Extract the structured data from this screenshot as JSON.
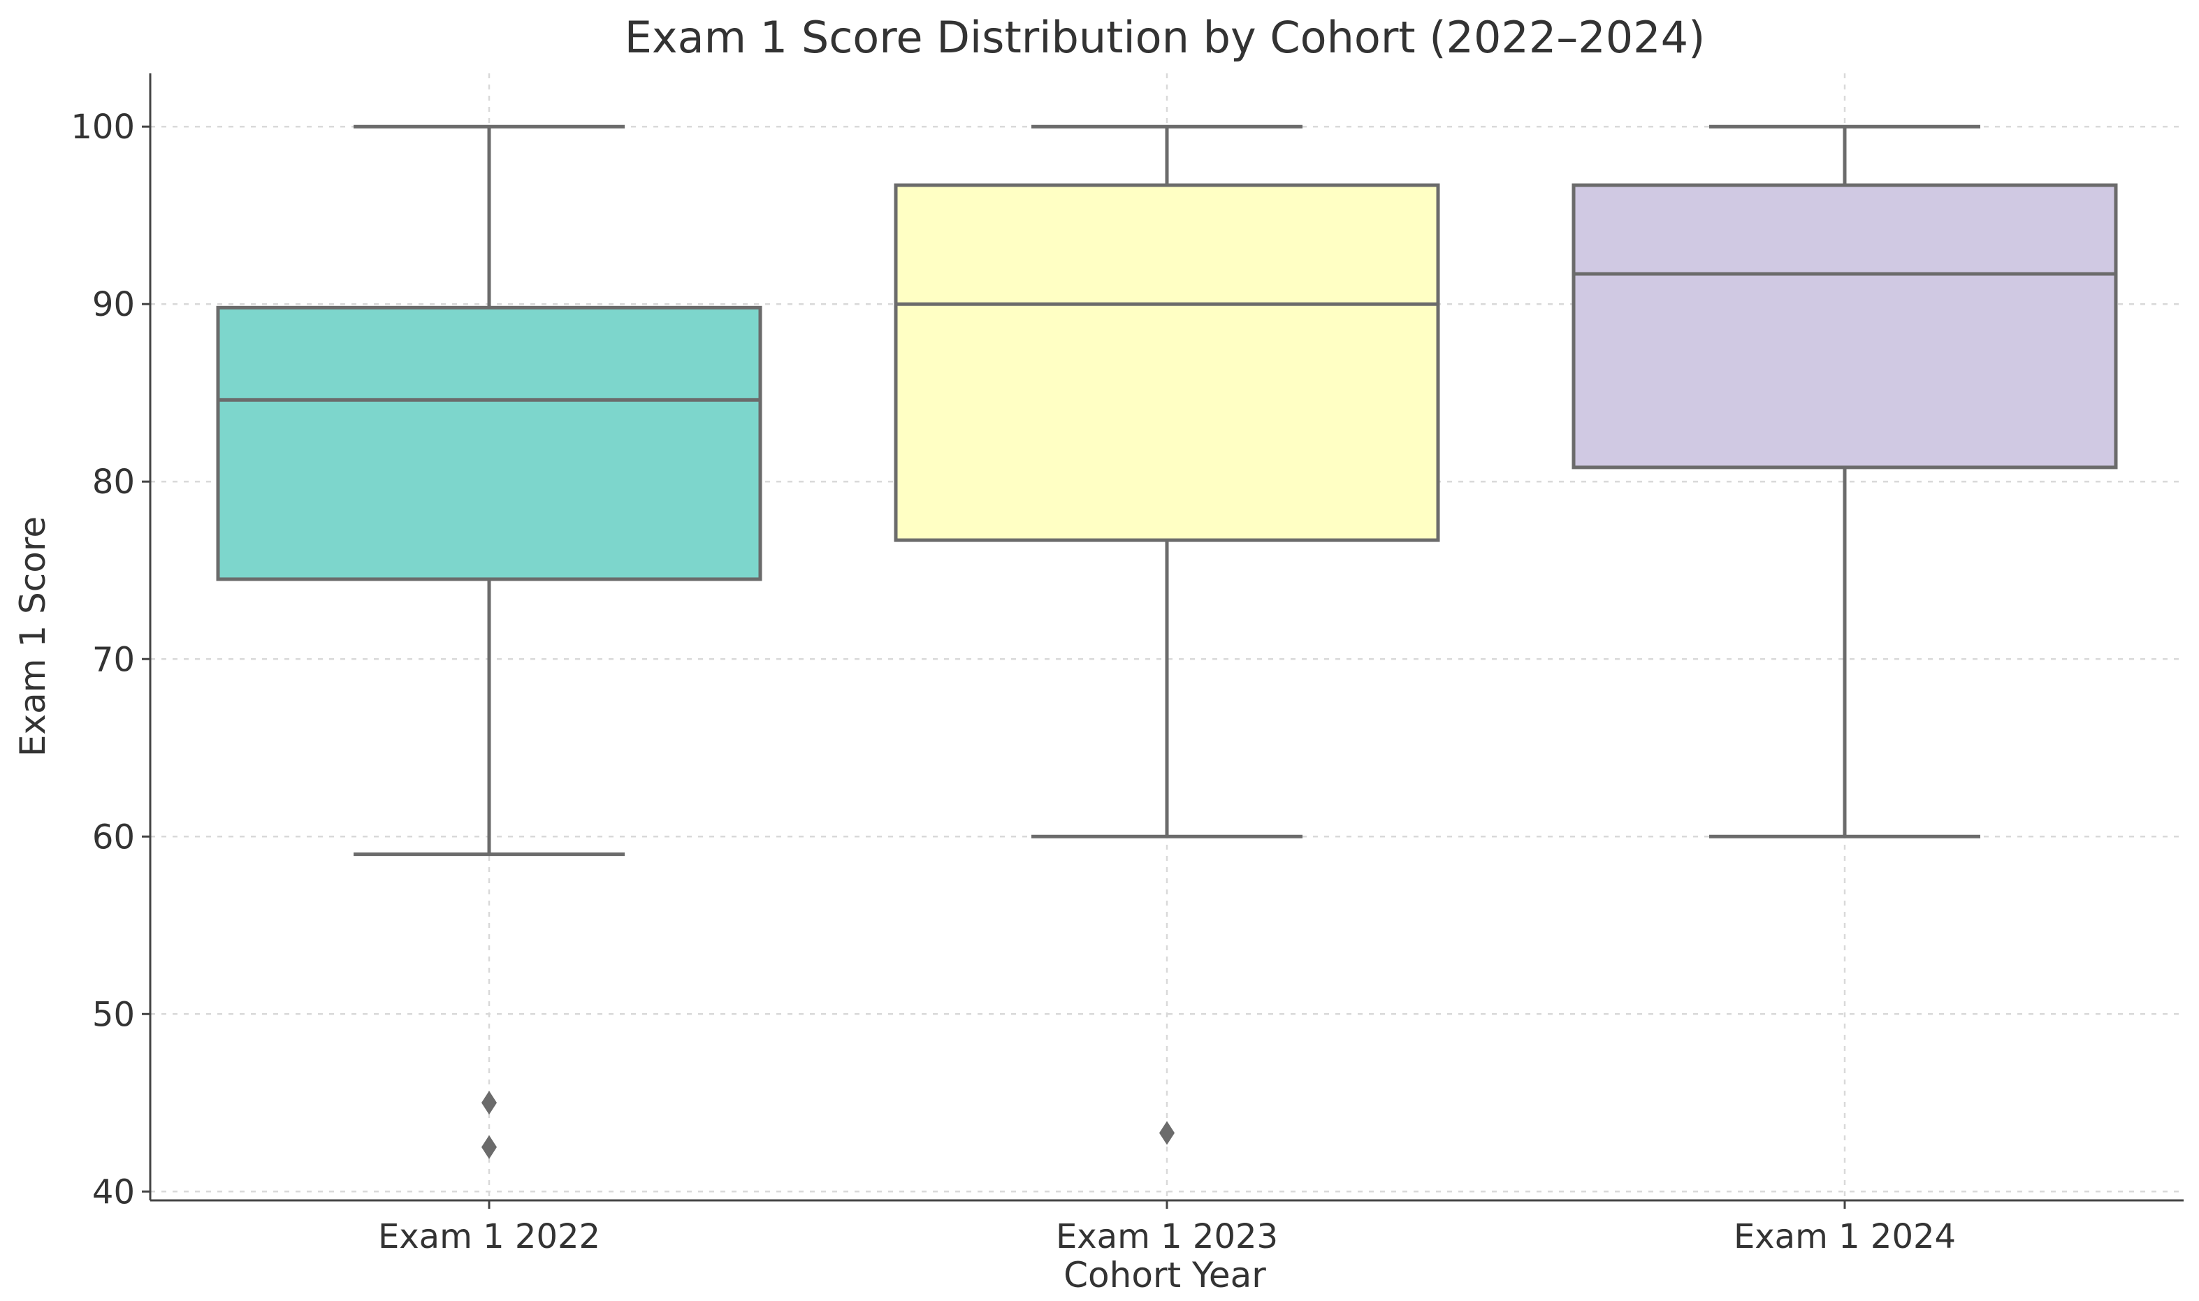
{
  "chart_data": {
    "type": "box",
    "title": "Exam 1 Score Distribution by Cohort (2022–2024)",
    "xlabel": "Cohort Year",
    "ylabel": "Exam 1 Score",
    "ylim": [
      39.5,
      103
    ],
    "yticks": [
      40,
      50,
      60,
      70,
      80,
      90,
      100
    ],
    "grid": true,
    "categories": [
      "Exam 1 2022",
      "Exam 1 2023",
      "Exam 1 2024"
    ],
    "boxes": [
      {
        "category": "Exam 1 2022",
        "whisker_low": 59,
        "q1": 74.5,
        "median": 84.6,
        "q3": 89.8,
        "whisker_high": 100,
        "outliers": [
          45,
          42.5
        ],
        "color": "#7dd6cc"
      },
      {
        "category": "Exam 1 2023",
        "whisker_low": 60,
        "q1": 76.7,
        "median": 90,
        "q3": 96.7,
        "whisker_high": 100,
        "outliers": [
          43.3
        ],
        "color": "#ffffc4"
      },
      {
        "category": "Exam 1 2024",
        "whisker_low": 60,
        "q1": 80.8,
        "median": 91.7,
        "q3": 96.7,
        "whisker_high": 100,
        "outliers": [],
        "color": "#d0c9e3"
      }
    ]
  }
}
